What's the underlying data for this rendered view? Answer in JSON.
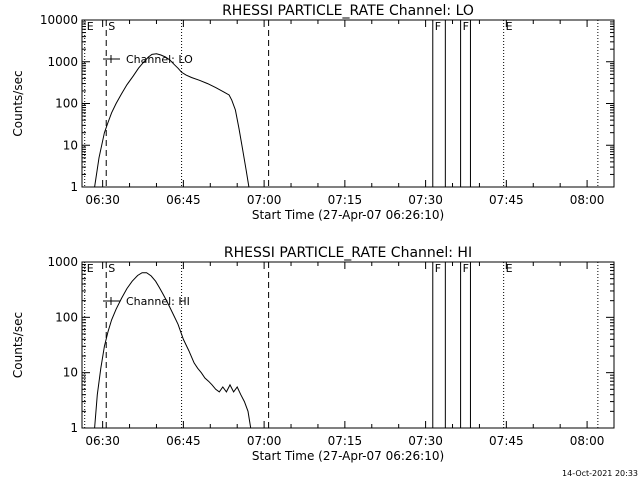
{
  "footer_timestamp": "14-Oct-2021 20:33",
  "chart_data": [
    {
      "type": "line",
      "title": "RHESSI PARTICLE_RATE Channel: LO",
      "xlabel": "Start Time (27-Apr-07 06:26:10)",
      "ylabel": "Counts/sec",
      "yscale": "log",
      "ylim": [
        1,
        10000
      ],
      "xlim": [
        "06:26:10",
        "08:05:00"
      ],
      "x_ticks": [
        "06:30",
        "06:45",
        "07:00",
        "07:15",
        "07:30",
        "07:45",
        "08:00"
      ],
      "y_ticks": [
        "1",
        "10",
        "100",
        "1000",
        "10000"
      ],
      "legend": {
        "label": "Channel: LO",
        "position": "top-left"
      },
      "markers": [
        {
          "time": "06:26:40",
          "label": "E",
          "style": "dotted"
        },
        {
          "time": "06:30:40",
          "label": "S",
          "style": "dashed"
        },
        {
          "time": "06:44:40",
          "label": "",
          "style": "dotted"
        },
        {
          "time": "07:00:50",
          "label": "",
          "style": "dashed"
        },
        {
          "time": "07:31:20",
          "label": "F",
          "style": "solid"
        },
        {
          "time": "07:33:40",
          "label": "",
          "style": "solid"
        },
        {
          "time": "07:36:30",
          "label": "F",
          "style": "solid"
        },
        {
          "time": "07:38:20",
          "label": "",
          "style": "solid"
        },
        {
          "time": "07:44:30",
          "label": "E",
          "style": "dotted"
        },
        {
          "time": "08:02:00",
          "label": "",
          "style": "dotted"
        }
      ],
      "series": [
        {
          "x": [
            "06:28:30",
            "06:29:20",
            "06:30:20",
            "06:31:00",
            "06:31:40",
            "06:32:30",
            "06:33:30",
            "06:34:30",
            "06:35:40",
            "06:36:40",
            "06:37:40",
            "06:38:30",
            "06:39:10",
            "06:40:00",
            "06:40:50",
            "06:41:40",
            "06:42:30",
            "06:43:20",
            "06:44:00",
            "06:44:40",
            "06:45:30",
            "06:46:30",
            "06:48:00",
            "06:49:30",
            "06:51:00",
            "06:52:30",
            "06:53:30",
            "06:54:00",
            "06:54:40",
            "06:55:20",
            "06:56:00",
            "06:56:40",
            "06:57:10"
          ],
          "y": [
            1,
            5,
            20,
            35,
            60,
            100,
            170,
            280,
            450,
            700,
            1000,
            1300,
            1500,
            1550,
            1450,
            1300,
            1100,
            850,
            700,
            560,
            480,
            420,
            360,
            300,
            240,
            190,
            160,
            120,
            70,
            25,
            8,
            2.5,
            1
          ]
        }
      ]
    },
    {
      "type": "line",
      "title": "RHESSI PARTICLE_RATE Channel: HI",
      "xlabel": "Start Time (27-Apr-07 06:26:10)",
      "ylabel": "Counts/sec",
      "yscale": "log",
      "ylim": [
        1,
        1000
      ],
      "xlim": [
        "06:26:10",
        "08:05:00"
      ],
      "x_ticks": [
        "06:30",
        "06:45",
        "07:00",
        "07:15",
        "07:30",
        "07:45",
        "08:00"
      ],
      "y_ticks": [
        "1",
        "10",
        "100",
        "1000"
      ],
      "legend": {
        "label": "Channel: HI",
        "position": "top-left"
      },
      "markers": [
        {
          "time": "06:26:40",
          "label": "E",
          "style": "dotted"
        },
        {
          "time": "06:30:40",
          "label": "S",
          "style": "dashed"
        },
        {
          "time": "06:44:40",
          "label": "",
          "style": "dotted"
        },
        {
          "time": "07:00:50",
          "label": "",
          "style": "dashed"
        },
        {
          "time": "07:31:20",
          "label": "F",
          "style": "solid"
        },
        {
          "time": "07:33:40",
          "label": "",
          "style": "solid"
        },
        {
          "time": "07:36:30",
          "label": "F",
          "style": "solid"
        },
        {
          "time": "07:38:20",
          "label": "",
          "style": "solid"
        },
        {
          "time": "07:44:30",
          "label": "E",
          "style": "dotted"
        },
        {
          "time": "08:02:00",
          "label": "",
          "style": "dotted"
        }
      ],
      "series": [
        {
          "x": [
            "06:28:30",
            "06:29:00",
            "06:29:40",
            "06:30:20",
            "06:31:00",
            "06:31:40",
            "06:32:30",
            "06:33:30",
            "06:34:30",
            "06:35:30",
            "06:36:30",
            "06:37:20",
            "06:38:10",
            "06:39:00",
            "06:39:50",
            "06:40:30",
            "06:41:10",
            "06:42:00",
            "06:43:00",
            "06:44:00",
            "06:45:00",
            "06:46:00",
            "06:47:00",
            "06:47:40",
            "06:48:20",
            "06:49:00",
            "06:49:40",
            "06:50:20",
            "06:51:00",
            "06:51:40",
            "06:52:20",
            "06:53:00",
            "06:53:40",
            "06:54:20",
            "06:55:00",
            "06:55:40",
            "06:56:20",
            "06:57:00",
            "06:57:30"
          ],
          "y": [
            1,
            4,
            12,
            30,
            55,
            90,
            140,
            220,
            330,
            450,
            570,
            640,
            640,
            560,
            450,
            350,
            270,
            190,
            120,
            75,
            40,
            25,
            15,
            12,
            10,
            8,
            7,
            6,
            5,
            4.5,
            5.5,
            4.5,
            6,
            4.5,
            5.5,
            4,
            3,
            2,
            1
          ]
        }
      ]
    }
  ]
}
